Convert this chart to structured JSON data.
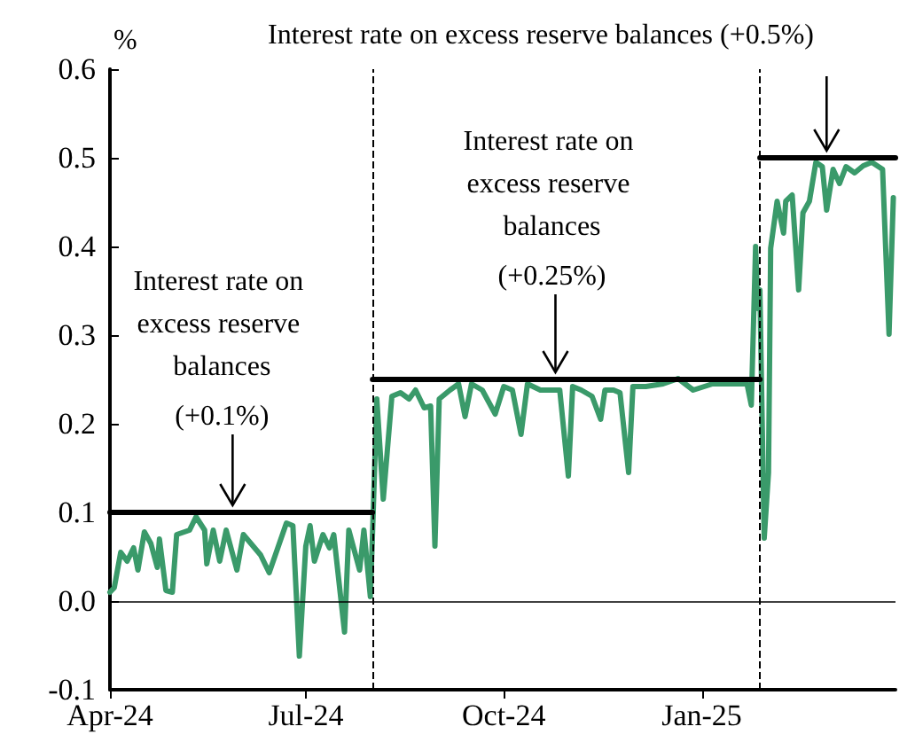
{
  "chart_data": {
    "type": "line",
    "ylabel": "%",
    "xlim": [
      "2024-04-01",
      "2025-04-01"
    ],
    "xticks": [
      {
        "value": "2024-04-01",
        "label": "Apr-24"
      },
      {
        "value": "2024-07-01",
        "label": "Jul-24"
      },
      {
        "value": "2024-10-01",
        "label": "Oct-24"
      },
      {
        "value": "2025-01-01",
        "label": "Jan-25"
      }
    ],
    "ylim": [
      -0.1,
      0.6
    ],
    "yticks": [
      -0.1,
      {
        "value": 0,
        "label": "0.0"
      },
      0.1,
      0.2,
      0.3,
      0.4,
      0.5,
      0.6
    ],
    "series": [
      {
        "color": "#3a9a6a",
        "x": [
          "2024-04-01",
          "2024-04-03",
          "2024-04-06",
          "2024-04-09",
          "2024-04-12",
          "2024-04-14",
          "2024-04-17",
          "2024-04-20",
          "2024-04-23",
          "2024-04-24",
          "2024-04-27",
          "2024-04-30",
          "2024-05-02",
          "2024-05-08",
          "2024-05-11",
          "2024-05-15",
          "2024-05-16",
          "2024-05-19",
          "2024-05-22",
          "2024-05-25",
          "2024-05-30",
          "2024-06-02",
          "2024-06-10",
          "2024-06-14",
          "2024-06-18",
          "2024-06-22",
          "2024-06-25",
          "2024-06-28",
          "2024-07-01",
          "2024-07-03",
          "2024-07-05",
          "2024-07-09",
          "2024-07-12",
          "2024-07-14",
          "2024-07-19",
          "2024-07-21",
          "2024-07-26",
          "2024-07-28",
          "2024-07-31",
          "2024-08-01",
          "2024-08-03",
          "2024-08-06",
          "2024-08-10",
          "2024-08-14",
          "2024-08-18",
          "2024-08-21",
          "2024-08-25",
          "2024-08-28",
          "2024-08-30",
          "2024-09-01",
          "2024-09-06",
          "2024-09-10",
          "2024-09-13",
          "2024-09-16",
          "2024-09-21",
          "2024-09-27",
          "2024-10-01",
          "2024-10-05",
          "2024-10-09",
          "2024-10-12",
          "2024-10-18",
          "2024-10-23",
          "2024-10-27",
          "2024-10-31",
          "2024-11-02",
          "2024-11-06",
          "2024-11-11",
          "2024-11-15",
          "2024-11-17",
          "2024-11-21",
          "2024-11-24",
          "2024-11-28",
          "2024-11-30",
          "2024-12-06",
          "2024-12-14",
          "2024-12-21",
          "2024-12-28",
          "2025-01-06",
          "2025-01-14",
          "2025-01-22",
          "2025-01-24",
          "2025-01-26",
          "2025-01-27",
          "2025-01-28",
          "2025-01-30",
          "2025-02-01",
          "2025-02-02",
          "2025-02-05",
          "2025-02-08",
          "2025-02-09",
          "2025-02-12",
          "2025-02-15",
          "2025-02-17",
          "2025-02-20",
          "2025-02-23",
          "2025-02-26",
          "2025-02-28",
          "2025-03-03",
          "2025-03-06",
          "2025-03-09",
          "2025-03-13",
          "2025-03-17",
          "2025-03-21",
          "2025-03-26",
          "2025-03-29",
          "2025-03-31"
        ],
        "values": [
          0.01,
          0.015,
          0.055,
          0.045,
          0.06,
          0.035,
          0.078,
          0.065,
          0.038,
          0.07,
          0.012,
          0.01,
          0.075,
          0.08,
          0.095,
          0.08,
          0.042,
          0.08,
          0.045,
          0.08,
          0.035,
          0.075,
          0.052,
          0.032,
          0.06,
          0.088,
          0.085,
          -0.062,
          0.062,
          0.085,
          0.045,
          0.075,
          0.06,
          0.075,
          -0.035,
          0.08,
          0.035,
          0.08,
          0.005,
          0.075,
          0.228,
          0.115,
          0.231,
          0.235,
          0.228,
          0.238,
          0.218,
          0.22,
          0.062,
          0.228,
          0.238,
          0.245,
          0.208,
          0.245,
          0.238,
          0.211,
          0.242,
          0.238,
          0.188,
          0.245,
          0.238,
          0.238,
          0.238,
          0.141,
          0.242,
          0.238,
          0.231,
          0.205,
          0.238,
          0.238,
          0.235,
          0.145,
          0.242,
          0.242,
          0.245,
          0.251,
          0.238,
          0.245,
          0.245,
          0.245,
          0.221,
          0.4,
          0.33,
          0.351,
          0.071,
          0.145,
          0.398,
          0.451,
          0.415,
          0.451,
          0.458,
          0.351,
          0.438,
          0.451,
          0.495,
          0.49,
          0.441,
          0.487,
          0.471,
          0.49,
          0.483,
          0.491,
          0.495,
          0.487,
          0.301,
          0.455
        ]
      },
      {
        "color": "#000000",
        "x": [
          "2024-04-01",
          "2024-08-01"
        ],
        "values": [
          0.1,
          0.1
        ]
      },
      {
        "color": "#000000",
        "x": [
          "2024-08-01",
          "2025-01-28"
        ],
        "values": [
          0.25,
          0.25
        ]
      },
      {
        "color": "#000000",
        "x": [
          "2025-01-28",
          "2025-04-01"
        ],
        "values": [
          0.5,
          0.5
        ]
      }
    ],
    "ref_lines": [
      {
        "axis": "x",
        "value": "2024-08-01",
        "color": "#000000",
        "line_style": "dashed"
      },
      {
        "axis": "x",
        "value": "2025-01-28",
        "color": "#000000",
        "line_style": "dashed"
      },
      {
        "axis": "y",
        "value": 0,
        "color": "#000000",
        "line_style": "solid"
      }
    ],
    "annotations": [
      {
        "text": "Interest rate on excess reserve balances (+0.1%)",
        "x": "2024-05-28",
        "y": 0.1
      },
      {
        "text": "Interest rate on excess reserve balances (+0.25%)",
        "x": "2024-10-25",
        "y": 0.25
      },
      {
        "text": "Interest rate on excess reserve balances (+0.5%)",
        "x": "2025-02-28",
        "y": 0.5
      }
    ]
  }
}
